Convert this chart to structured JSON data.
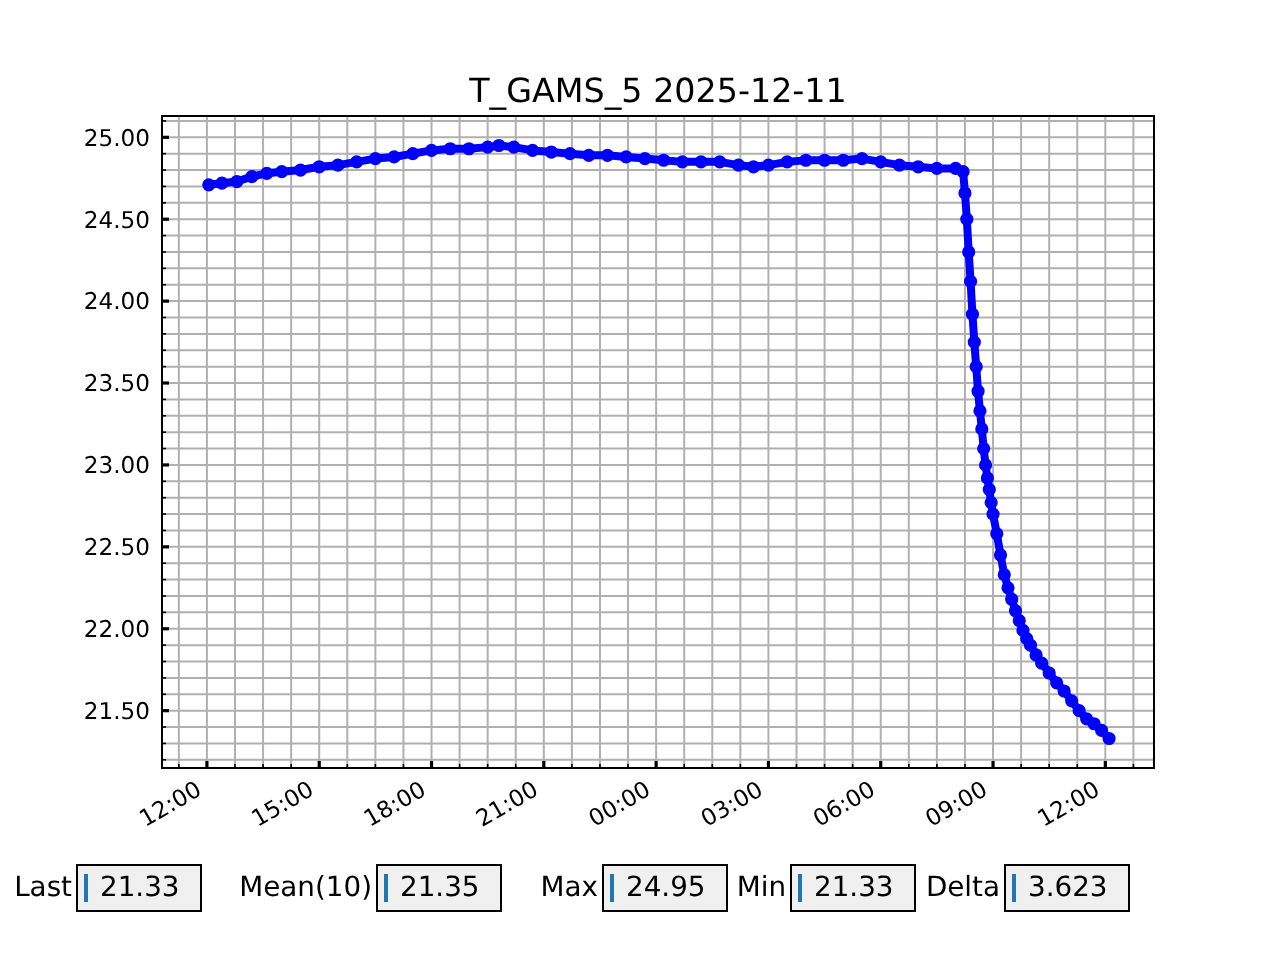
{
  "chart_data": {
    "type": "line",
    "title": "T_GAMS_5 2025-12-11",
    "x": [
      "2025-12-10T12:03",
      "2025-12-10T12:24",
      "2025-12-10T12:48",
      "2025-12-10T13:12",
      "2025-12-10T13:36",
      "2025-12-10T14:00",
      "2025-12-10T14:30",
      "2025-12-10T15:00",
      "2025-12-10T15:30",
      "2025-12-10T16:00",
      "2025-12-10T16:30",
      "2025-12-10T17:00",
      "2025-12-10T17:30",
      "2025-12-10T18:00",
      "2025-12-10T18:30",
      "2025-12-10T19:00",
      "2025-12-10T19:30",
      "2025-12-10T19:48",
      "2025-12-10T20:12",
      "2025-12-10T20:42",
      "2025-12-10T21:12",
      "2025-12-10T21:42",
      "2025-12-10T22:12",
      "2025-12-10T22:42",
      "2025-12-10T23:12",
      "2025-12-10T23:42",
      "2025-12-11T00:12",
      "2025-12-11T00:42",
      "2025-12-11T01:12",
      "2025-12-11T01:42",
      "2025-12-11T02:12",
      "2025-12-11T02:36",
      "2025-12-11T03:00",
      "2025-12-11T03:30",
      "2025-12-11T04:00",
      "2025-12-11T04:30",
      "2025-12-11T05:00",
      "2025-12-11T05:30",
      "2025-12-11T06:00",
      "2025-12-11T06:30",
      "2025-12-11T07:00",
      "2025-12-11T07:30",
      "2025-12-11T08:00",
      "2025-12-11T08:12",
      "2025-12-11T08:15",
      "2025-12-11T08:18",
      "2025-12-11T08:21",
      "2025-12-11T08:24",
      "2025-12-11T08:27",
      "2025-12-11T08:30",
      "2025-12-11T08:33",
      "2025-12-11T08:36",
      "2025-12-11T08:39",
      "2025-12-11T08:42",
      "2025-12-11T08:45",
      "2025-12-11T08:48",
      "2025-12-11T08:51",
      "2025-12-11T08:54",
      "2025-12-11T08:57",
      "2025-12-11T09:00",
      "2025-12-11T09:06",
      "2025-12-11T09:12",
      "2025-12-11T09:18",
      "2025-12-11T09:24",
      "2025-12-11T09:30",
      "2025-12-11T09:36",
      "2025-12-11T09:42",
      "2025-12-11T09:48",
      "2025-12-11T09:54",
      "2025-12-11T10:00",
      "2025-12-11T10:09",
      "2025-12-11T10:18",
      "2025-12-11T10:30",
      "2025-12-11T10:42",
      "2025-12-11T10:54",
      "2025-12-11T11:06",
      "2025-12-11T11:18",
      "2025-12-11T11:30",
      "2025-12-11T11:42",
      "2025-12-11T11:54",
      "2025-12-11T12:06"
    ],
    "values": [
      24.71,
      24.72,
      24.73,
      24.76,
      24.78,
      24.79,
      24.8,
      24.82,
      24.83,
      24.85,
      24.87,
      24.88,
      24.9,
      24.92,
      24.93,
      24.93,
      24.94,
      24.95,
      24.94,
      24.92,
      24.91,
      24.9,
      24.89,
      24.89,
      24.88,
      24.87,
      24.86,
      24.85,
      24.85,
      24.85,
      24.83,
      24.82,
      24.83,
      24.85,
      24.86,
      24.86,
      24.86,
      24.87,
      24.85,
      24.83,
      24.82,
      24.81,
      24.81,
      24.79,
      24.66,
      24.5,
      24.3,
      24.12,
      23.92,
      23.75,
      23.6,
      23.45,
      23.33,
      23.22,
      23.1,
      23.0,
      22.92,
      22.85,
      22.77,
      22.7,
      22.58,
      22.45,
      22.33,
      22.25,
      22.18,
      22.11,
      22.05,
      21.99,
      21.94,
      21.9,
      21.84,
      21.79,
      21.73,
      21.67,
      21.62,
      21.56,
      21.5,
      21.45,
      21.42,
      21.38,
      21.33
    ],
    "color": "#0000ff",
    "marker": "circle",
    "line_style": "solid",
    "grid": true,
    "xlim": [
      "2025-12-10T10:48",
      "2025-12-11T13:18"
    ],
    "xticks": [
      {
        "value": "2025-12-10T11:15",
        "label": null
      },
      {
        "value": "2025-12-10T12:00",
        "label": "12:00"
      },
      {
        "value": "2025-12-10T12:45",
        "label": null
      },
      {
        "value": "2025-12-10T13:30",
        "label": null
      },
      {
        "value": "2025-12-10T14:15",
        "label": null
      },
      {
        "value": "2025-12-10T15:00",
        "label": "15:00"
      },
      {
        "value": "2025-12-10T15:45",
        "label": null
      },
      {
        "value": "2025-12-10T16:30",
        "label": null
      },
      {
        "value": "2025-12-10T17:15",
        "label": null
      },
      {
        "value": "2025-12-10T18:00",
        "label": "18:00"
      },
      {
        "value": "2025-12-10T18:45",
        "label": null
      },
      {
        "value": "2025-12-10T19:30",
        "label": null
      },
      {
        "value": "2025-12-10T20:15",
        "label": null
      },
      {
        "value": "2025-12-10T21:00",
        "label": "21:00"
      },
      {
        "value": "2025-12-10T21:45",
        "label": null
      },
      {
        "value": "2025-12-10T22:30",
        "label": null
      },
      {
        "value": "2025-12-10T23:15",
        "label": null
      },
      {
        "value": "2025-12-11T00:00",
        "label": "00:00"
      },
      {
        "value": "2025-12-11T00:45",
        "label": null
      },
      {
        "value": "2025-12-11T01:30",
        "label": null
      },
      {
        "value": "2025-12-11T02:15",
        "label": null
      },
      {
        "value": "2025-12-11T03:00",
        "label": "03:00"
      },
      {
        "value": "2025-12-11T03:45",
        "label": null
      },
      {
        "value": "2025-12-11T04:30",
        "label": null
      },
      {
        "value": "2025-12-11T05:15",
        "label": null
      },
      {
        "value": "2025-12-11T06:00",
        "label": "06:00"
      },
      {
        "value": "2025-12-11T06:45",
        "label": null
      },
      {
        "value": "2025-12-11T07:30",
        "label": null
      },
      {
        "value": "2025-12-11T08:15",
        "label": null
      },
      {
        "value": "2025-12-11T09:00",
        "label": "09:00"
      },
      {
        "value": "2025-12-11T09:45",
        "label": null
      },
      {
        "value": "2025-12-11T10:30",
        "label": null
      },
      {
        "value": "2025-12-11T11:15",
        "label": null
      },
      {
        "value": "2025-12-11T12:00",
        "label": "12:00"
      },
      {
        "value": "2025-12-11T12:45",
        "label": null
      }
    ],
    "ylim": [
      21.15,
      25.13
    ],
    "yticks": [
      {
        "value": 21.2,
        "label": null
      },
      {
        "value": 21.3,
        "label": null
      },
      {
        "value": 21.4,
        "label": null
      },
      {
        "value": 21.5,
        "label": "21.50"
      },
      {
        "value": 21.6,
        "label": null
      },
      {
        "value": 21.7,
        "label": null
      },
      {
        "value": 21.8,
        "label": null
      },
      {
        "value": 21.9,
        "label": null
      },
      {
        "value": 22.0,
        "label": "22.00"
      },
      {
        "value": 22.1,
        "label": null
      },
      {
        "value": 22.2,
        "label": null
      },
      {
        "value": 22.3,
        "label": null
      },
      {
        "value": 22.4,
        "label": null
      },
      {
        "value": 22.5,
        "label": "22.50"
      },
      {
        "value": 22.6,
        "label": null
      },
      {
        "value": 22.7,
        "label": null
      },
      {
        "value": 22.8,
        "label": null
      },
      {
        "value": 22.9,
        "label": null
      },
      {
        "value": 23.0,
        "label": "23.00"
      },
      {
        "value": 23.1,
        "label": null
      },
      {
        "value": 23.2,
        "label": null
      },
      {
        "value": 23.3,
        "label": null
      },
      {
        "value": 23.4,
        "label": null
      },
      {
        "value": 23.5,
        "label": "23.50"
      },
      {
        "value": 23.6,
        "label": null
      },
      {
        "value": 23.7,
        "label": null
      },
      {
        "value": 23.8,
        "label": null
      },
      {
        "value": 23.9,
        "label": null
      },
      {
        "value": 24.0,
        "label": "24.00"
      },
      {
        "value": 24.1,
        "label": null
      },
      {
        "value": 24.2,
        "label": null
      },
      {
        "value": 24.3,
        "label": null
      },
      {
        "value": 24.4,
        "label": null
      },
      {
        "value": 24.5,
        "label": "24.50"
      },
      {
        "value": 24.6,
        "label": null
      },
      {
        "value": 24.7,
        "label": null
      },
      {
        "value": 24.8,
        "label": null
      },
      {
        "value": 24.9,
        "label": null
      },
      {
        "value": 25.0,
        "label": "25.00"
      },
      {
        "value": 25.1,
        "label": null
      }
    ],
    "annotations": [
      "Last",
      "21.33",
      "Mean(10)",
      "21.35",
      "Max",
      "24.95",
      "Min",
      "21.33",
      "Delta",
      "3.623"
    ]
  }
}
